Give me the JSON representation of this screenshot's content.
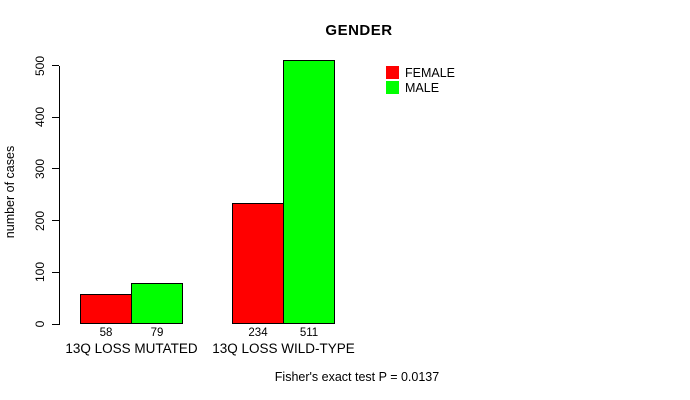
{
  "chart_data": {
    "type": "bar",
    "title": "GENDER",
    "ylabel": "number of cases",
    "xlabel": "",
    "ylim": [
      0,
      511
    ],
    "yticks": [
      0,
      100,
      200,
      300,
      400,
      500
    ],
    "grid": false,
    "legend_position": "top-right",
    "categories": [
      "13Q LOSS MUTATED",
      "13Q LOSS WILD-TYPE"
    ],
    "series": [
      {
        "name": "FEMALE",
        "color": "#ff0000",
        "values": [
          58,
          234
        ]
      },
      {
        "name": "MALE",
        "color": "#00ff00",
        "values": [
          79,
          511
        ]
      }
    ],
    "bar_value_labels": [
      [
        58,
        79
      ],
      [
        234,
        511
      ]
    ],
    "annotation": "Fisher's exact test P = 0.0137"
  },
  "colors": {
    "female": "#ff0000",
    "male": "#00ff00",
    "axis": "#000000",
    "background": "#ffffff"
  }
}
